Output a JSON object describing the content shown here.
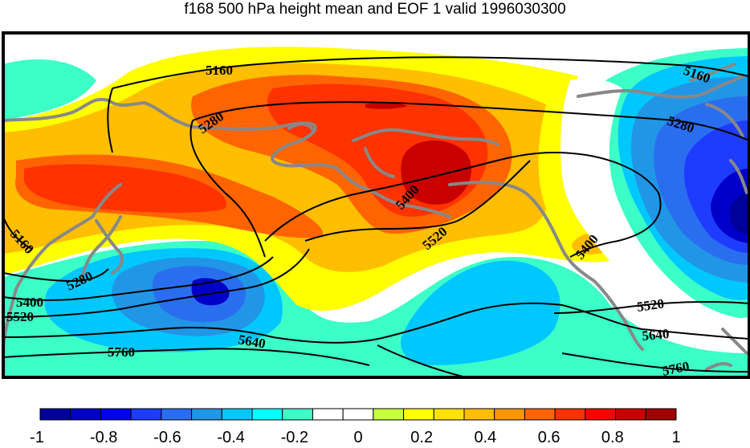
{
  "title": "f168 500 hPa height mean and EOF 1 valid 1996030300",
  "contour_labels": {
    "c5160_top": "5160",
    "c5160_right": "5160",
    "c5160_left": "5160",
    "c5280_top": "5280",
    "c5280_right": "5280",
    "c5280_left": "5280",
    "c5400_mid": "5400",
    "c5400_right": "5400",
    "c5400_left": "5400",
    "c5520_mid": "5520",
    "c5520_right": "5520",
    "c5520_left": "5520",
    "c5640_mid": "5640",
    "c5640_right": "5640",
    "c5760_left": "5760",
    "c5760_right": "5760"
  },
  "colorbar": {
    "min": -1,
    "max": 1,
    "colors": [
      "#00009a",
      "#0000c8",
      "#0000f0",
      "#1e3cff",
      "#2a6ef0",
      "#2196e6",
      "#00c8ff",
      "#00ffff",
      "#3cffc8",
      "#ffffff",
      "#ffffff",
      "#c8ff3c",
      "#ffff00",
      "#ffe100",
      "#ffbe00",
      "#ff9600",
      "#ff6400",
      "#ff3200",
      "#ff0000",
      "#c80000",
      "#a00000"
    ],
    "tick_labels": [
      "-1",
      "-0.8",
      "-0.6",
      "-0.4",
      "-0.2",
      "0",
      "0.2",
      "0.4",
      "0.6",
      "0.8",
      "1"
    ]
  }
}
